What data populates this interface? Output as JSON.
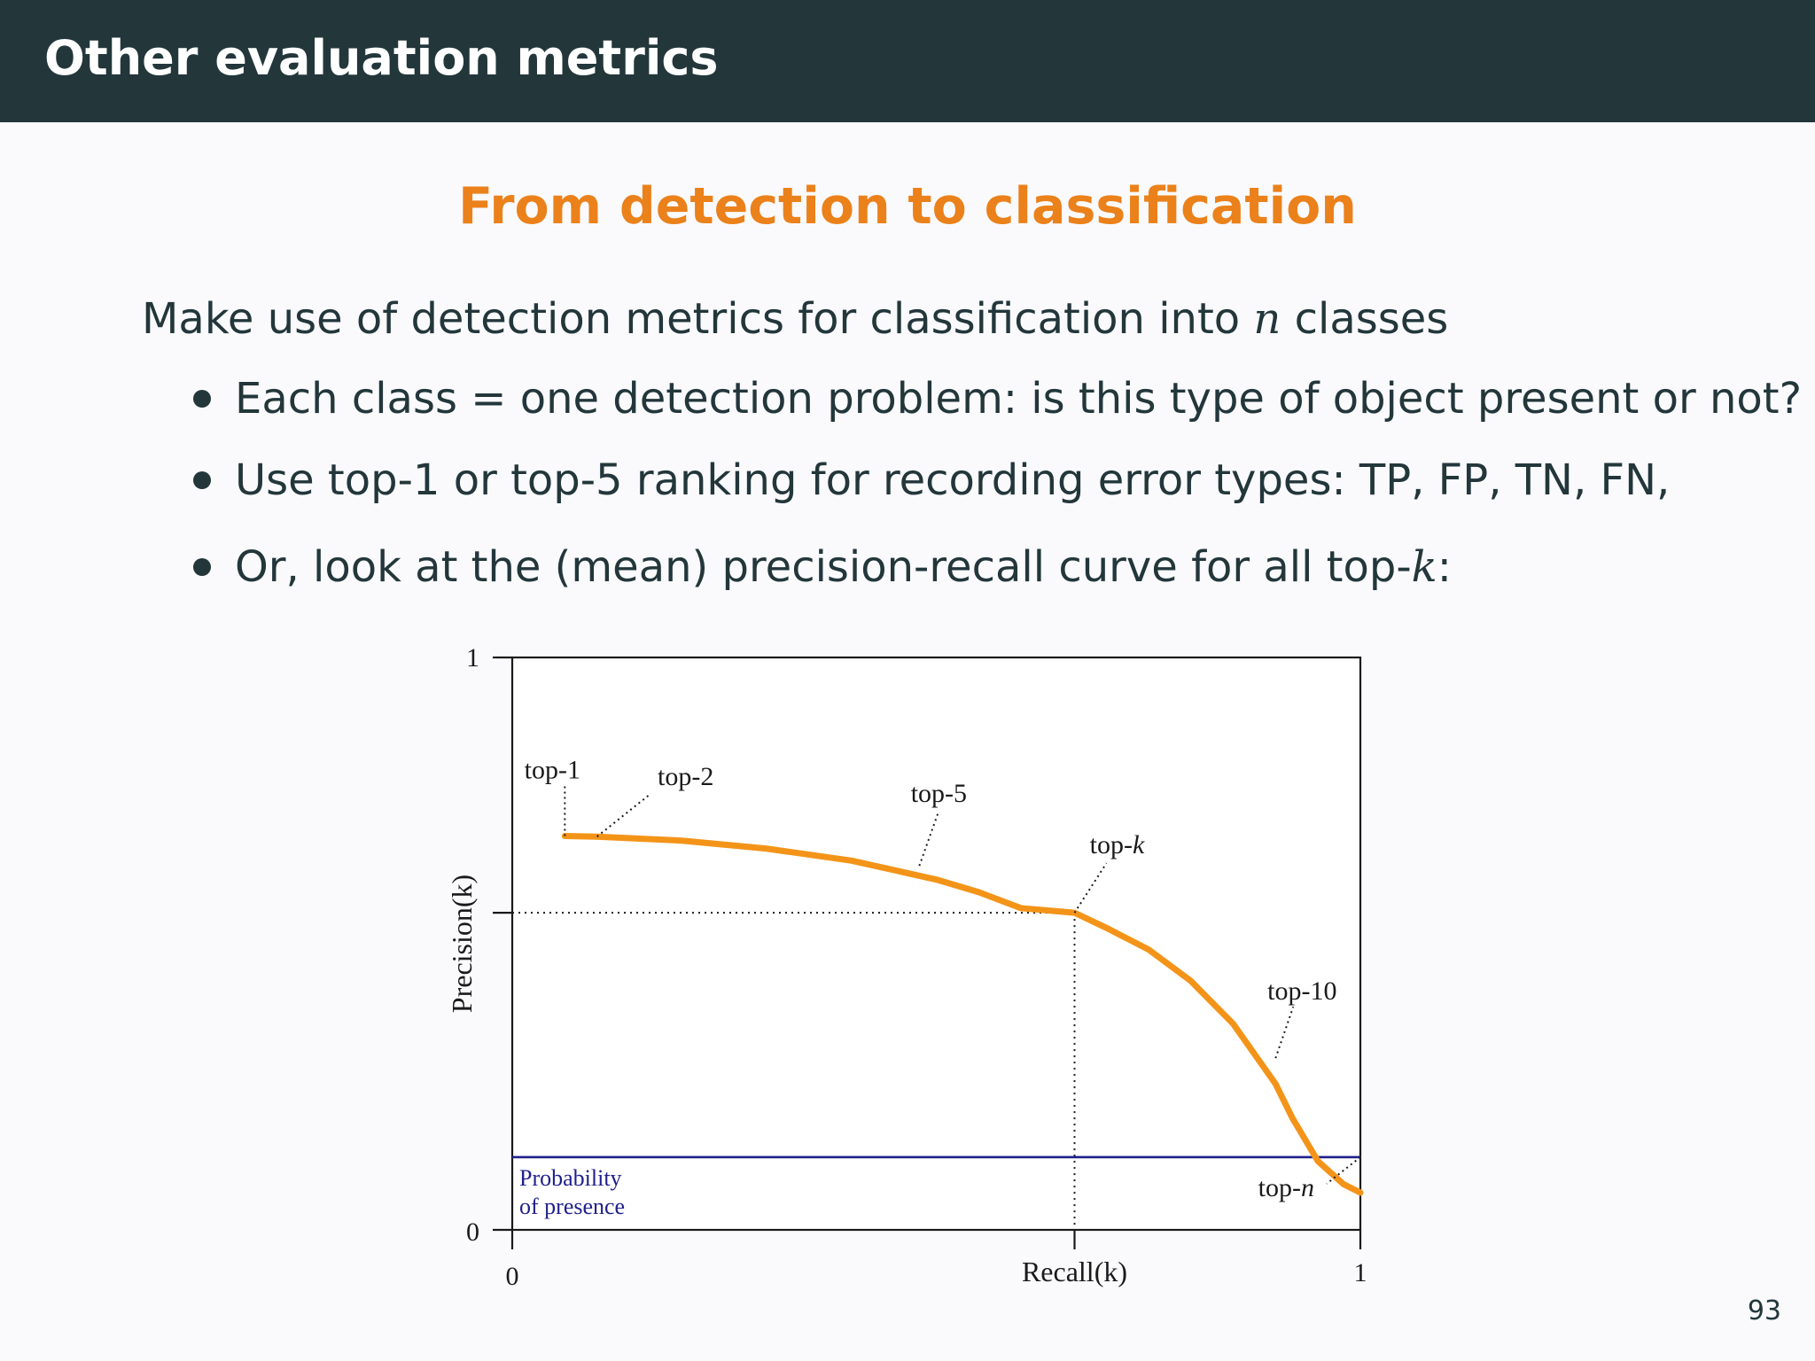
{
  "header": {
    "title": "Other evaluation metrics"
  },
  "block": {
    "title": "From detection to classification"
  },
  "intro": {
    "text_before": "Make use of detection metrics for classification into ",
    "math_n": "n",
    "text_after": " classes"
  },
  "bullets": [
    {
      "text": "Each class = one detection problem: is this type of object present or not?"
    },
    {
      "text": "Use top-1 or top-5 ranking for recording error types: TP, FP, TN, FN,"
    },
    {
      "text_before": "Or, look at the (mean) precision-recall curve for all top-",
      "math_k": "k",
      "text_after": ":"
    }
  ],
  "chart_data": {
    "type": "line",
    "xlabel": "Recall(k)",
    "ylabel": "Precision(k)",
    "xlim": [
      0,
      1
    ],
    "ylim": [
      0,
      1
    ],
    "x_tick_labels": [
      "0",
      "1"
    ],
    "y_tick_labels": [
      "0",
      "1"
    ],
    "series": [
      {
        "points": [
          [
            0.062,
            0.688
          ],
          [
            0.1,
            0.687
          ],
          [
            0.2,
            0.68
          ],
          [
            0.3,
            0.666
          ],
          [
            0.4,
            0.645
          ],
          [
            0.5,
            0.612
          ],
          [
            0.55,
            0.59
          ],
          [
            0.6,
            0.562
          ],
          [
            0.663,
            0.554
          ],
          [
            0.7,
            0.528
          ],
          [
            0.75,
            0.49
          ],
          [
            0.8,
            0.435
          ],
          [
            0.85,
            0.36
          ],
          [
            0.9,
            0.255
          ],
          [
            0.92,
            0.195
          ],
          [
            0.95,
            0.12
          ],
          [
            0.98,
            0.08
          ],
          [
            1.0,
            0.065
          ]
        ]
      }
    ],
    "baseline": {
      "label_line1": "Probability",
      "label_line2": "of presence",
      "value": 0.127,
      "color": "#1f1f8c"
    },
    "marked_point": {
      "x": 0.663,
      "y": 0.554
    },
    "annotations": [
      {
        "text": "top-1",
        "x": 0.062,
        "y": 0.688
      },
      {
        "text": "top-2",
        "x": 0.1,
        "y": 0.687
      },
      {
        "text": "top-5",
        "x": 0.48,
        "y": 0.636
      },
      {
        "text_before": "top-",
        "math": "k",
        "x": 0.663,
        "y": 0.554
      },
      {
        "text": "top-10",
        "x": 0.9,
        "y": 0.3
      },
      {
        "text_before": "top-",
        "math": "n",
        "x": 1.0,
        "y": 0.127
      }
    ],
    "curve_color": "#f39419"
  },
  "page": {
    "number": "93"
  }
}
